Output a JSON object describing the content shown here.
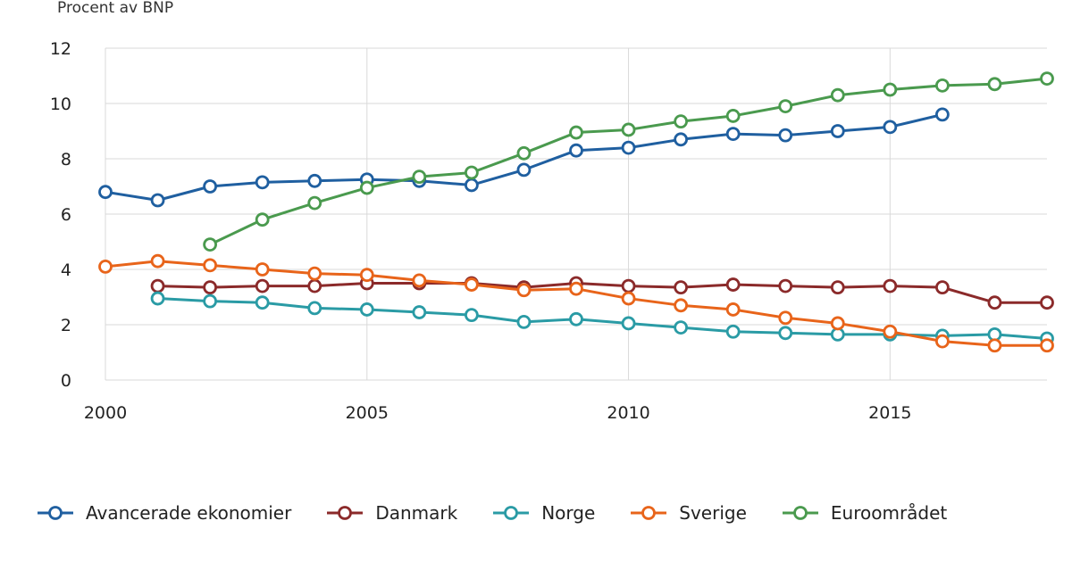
{
  "chart_data": {
    "type": "line",
    "ylabel": "Procent av BNP",
    "ylim": [
      0,
      12
    ],
    "xlim": [
      2000,
      2018
    ],
    "yticks": [
      0,
      2,
      4,
      6,
      8,
      10,
      12
    ],
    "xticks": [
      2000,
      2005,
      2010,
      2015
    ],
    "grid": true,
    "legend_position": "bottom",
    "series": [
      {
        "name": "Avancerade ekonomier",
        "color": "#1f5fa0",
        "x": [
          2000,
          2001,
          2002,
          2003,
          2004,
          2005,
          2006,
          2007,
          2008,
          2009,
          2010,
          2011,
          2012,
          2013,
          2014,
          2015,
          2016
        ],
        "values": [
          6.8,
          6.5,
          7.0,
          7.15,
          7.2,
          7.25,
          7.2,
          7.05,
          7.6,
          8.3,
          8.4,
          8.7,
          8.9,
          8.85,
          9.0,
          9.15,
          9.6
        ]
      },
      {
        "name": "Danmark",
        "color": "#8b2a2a",
        "x": [
          2001,
          2002,
          2003,
          2004,
          2005,
          2006,
          2007,
          2008,
          2009,
          2010,
          2011,
          2012,
          2013,
          2014,
          2015,
          2016,
          2017,
          2018
        ],
        "values": [
          3.4,
          3.35,
          3.4,
          3.4,
          3.5,
          3.5,
          3.5,
          3.35,
          3.5,
          3.4,
          3.35,
          3.45,
          3.4,
          3.35,
          3.4,
          3.35,
          2.8,
          2.8
        ]
      },
      {
        "name": "Norge",
        "color": "#2a9ba5",
        "x": [
          2001,
          2002,
          2003,
          2004,
          2005,
          2006,
          2007,
          2008,
          2009,
          2010,
          2011,
          2012,
          2013,
          2014,
          2015,
          2016,
          2017,
          2018
        ],
        "values": [
          2.95,
          2.85,
          2.8,
          2.6,
          2.55,
          2.45,
          2.35,
          2.1,
          2.2,
          2.05,
          1.9,
          1.75,
          1.7,
          1.65,
          1.65,
          1.6,
          1.65,
          1.5
        ]
      },
      {
        "name": "Sverige",
        "color": "#e8641a",
        "x": [
          2000,
          2001,
          2002,
          2003,
          2004,
          2005,
          2006,
          2007,
          2008,
          2009,
          2010,
          2011,
          2012,
          2013,
          2014,
          2015,
          2016,
          2017,
          2018
        ],
        "values": [
          4.1,
          4.3,
          4.15,
          4.0,
          3.85,
          3.8,
          3.6,
          3.45,
          3.25,
          3.3,
          2.95,
          2.7,
          2.55,
          2.25,
          2.05,
          1.75,
          1.4,
          1.25,
          1.25
        ]
      },
      {
        "name": "Euroområdet",
        "color": "#4a9a4e",
        "x": [
          2002,
          2003,
          2004,
          2005,
          2006,
          2007,
          2008,
          2009,
          2010,
          2011,
          2012,
          2013,
          2014,
          2015,
          2016,
          2017,
          2018
        ],
        "values": [
          4.9,
          5.8,
          6.4,
          6.95,
          7.35,
          7.5,
          8.2,
          8.95,
          9.05,
          9.35,
          9.55,
          9.9,
          10.3,
          10.5,
          10.65,
          10.7,
          10.9
        ]
      }
    ]
  }
}
